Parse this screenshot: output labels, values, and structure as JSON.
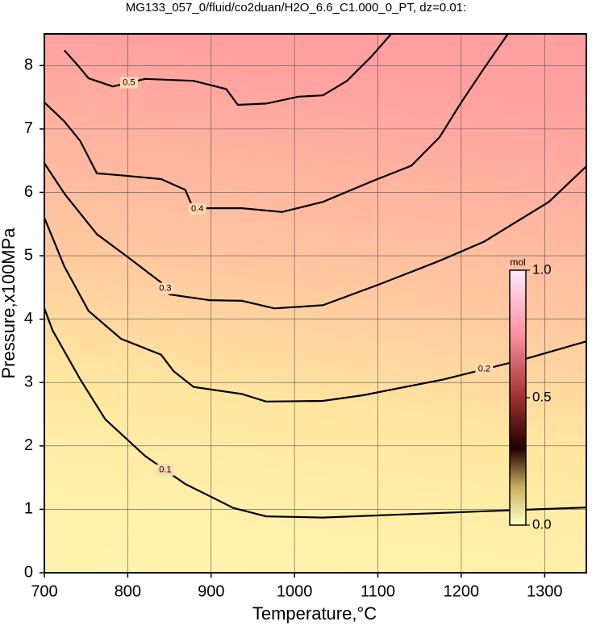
{
  "chart_data": {
    "type": "contour",
    "title": "MG133_057_0/fluid/co2duan/H2O_6.6_C1.000_0_PT, dz=0.01:",
    "x_label": "Temperature,°C",
    "y_label": "Pressure,x100MPa",
    "xlim": [
      700,
      1350
    ],
    "ylim": [
      0,
      8.5
    ],
    "xticks": [
      700,
      800,
      900,
      1000,
      1100,
      1200,
      1300
    ],
    "yticks": [
      0,
      1,
      2,
      3,
      4,
      5,
      6,
      7,
      8
    ],
    "grid": true,
    "contours": [
      {
        "level": 0.1,
        "x": [
          700,
          710,
          743,
          773,
          821,
          869,
          927,
          966,
          1034,
          1131,
          1227,
          1350
        ],
        "y": [
          4.17,
          3.82,
          3.05,
          2.42,
          1.84,
          1.4,
          1.02,
          0.89,
          0.87,
          0.92,
          0.97,
          1.03
        ]
      },
      {
        "level": 0.2,
        "x": [
          700,
          724,
          753,
          792,
          840,
          855,
          879,
          937,
          966,
          1034,
          1082,
          1179,
          1276,
          1350
        ],
        "y": [
          5.6,
          4.83,
          4.13,
          3.69,
          3.44,
          3.18,
          2.93,
          2.82,
          2.7,
          2.71,
          2.8,
          3.05,
          3.37,
          3.65
        ]
      },
      {
        "level": 0.3,
        "x": [
          700,
          724,
          763,
          802,
          840,
          850,
          898,
          937,
          976,
          1034,
          1102,
          1174,
          1227,
          1305,
          1350
        ],
        "y": [
          6.46,
          5.98,
          5.34,
          4.96,
          4.58,
          4.39,
          4.3,
          4.29,
          4.17,
          4.22,
          4.55,
          4.92,
          5.22,
          5.85,
          6.41
        ]
      },
      {
        "level": 0.4,
        "x": [
          700,
          724,
          743,
          763,
          792,
          840,
          869,
          879,
          888,
          937,
          985,
          1034,
          1092,
          1140,
          1174,
          1198,
          1227,
          1256
        ],
        "y": [
          7.42,
          7.12,
          6.81,
          6.3,
          6.27,
          6.21,
          6.04,
          5.73,
          5.75,
          5.75,
          5.69,
          5.85,
          6.17,
          6.42,
          6.87,
          7.38,
          7.95,
          8.5
        ]
      },
      {
        "level": 0.5,
        "x": [
          724,
          739,
          753,
          782,
          821,
          879,
          918,
          932,
          966,
          1005,
          1034,
          1063,
          1092,
          1116
        ],
        "y": [
          8.24,
          8.02,
          7.8,
          7.67,
          7.79,
          7.76,
          7.63,
          7.38,
          7.4,
          7.51,
          7.53,
          7.76,
          8.14,
          8.5
        ]
      }
    ],
    "colorbar": {
      "label": "mol",
      "lim": [
        0,
        1
      ],
      "ticks": [
        {
          "value": 0,
          "label": "0.0"
        },
        0.5,
        {
          "value": 1,
          "label": "1.0"
        }
      ]
    }
  }
}
